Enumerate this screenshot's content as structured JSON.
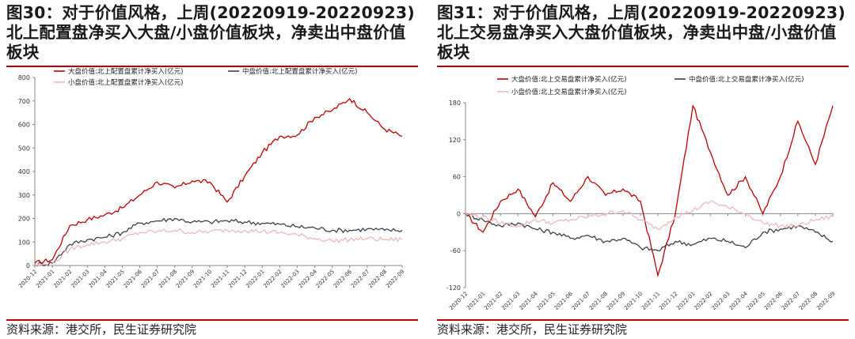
{
  "charts": [
    {
      "title": "图30：对于价值风格，上周(20220919-20220923)北上配置盘净买入大盘/小盘价值板块，净卖出中盘价值板块",
      "source": "资料来源：港交所，民生证券研究院"
    },
    {
      "title": "图31：对于价值风格，上周(20220919-20220923)北上交易盘净买入大盘价值板块，净卖出中盘/小盘价值板块",
      "source": "资料来源：港交所，民生证券研究院"
    }
  ],
  "chart_data": [
    {
      "type": "line",
      "grid": false,
      "legend_position": "top",
      "ylim": [
        0,
        800
      ],
      "yticks": [
        0,
        100,
        200,
        300,
        400,
        500,
        600,
        700,
        800
      ],
      "x": [
        "2020-12",
        "2021-01",
        "2021-02",
        "2021-03",
        "2021-04",
        "2021-05",
        "2021-06",
        "2021-07",
        "2021-08",
        "2021-09",
        "2021-10",
        "2021-11",
        "2021-12",
        "2022-01",
        "2022-02",
        "2022-03",
        "2022-04",
        "2022-05",
        "2022-06",
        "2022-07",
        "2022-08",
        "2022-09"
      ],
      "series": [
        {
          "name": "大盘价值:北上配置盘累计净买入(亿元)",
          "color": "#c00000",
          "values": [
            10,
            25,
            170,
            195,
            215,
            245,
            300,
            355,
            330,
            360,
            355,
            270,
            380,
            480,
            550,
            555,
            630,
            660,
            710,
            650,
            580,
            550
          ]
        },
        {
          "name": "中盘价值:北上配置盘累计净买入(亿元)",
          "color": "#404040",
          "values": [
            5,
            10,
            90,
            110,
            120,
            140,
            180,
            190,
            200,
            185,
            185,
            190,
            185,
            180,
            175,
            165,
            160,
            150,
            150,
            155,
            150,
            150
          ]
        },
        {
          "name": "小盘价值:北上配置盘累计净买入(亿元)",
          "color": "#f2b8b8",
          "values": [
            3,
            5,
            70,
            90,
            100,
            115,
            140,
            145,
            150,
            140,
            145,
            150,
            150,
            145,
            140,
            130,
            115,
            105,
            110,
            115,
            110,
            110
          ]
        }
      ]
    },
    {
      "type": "line",
      "grid": false,
      "legend_position": "top",
      "ylim": [
        -120,
        180
      ],
      "yticks": [
        -120,
        -60,
        0,
        60,
        120,
        180
      ],
      "x": [
        "2020-12",
        "2021-01",
        "2021-02",
        "2021-03",
        "2021-04",
        "2021-05",
        "2021-06",
        "2021-07",
        "2021-08",
        "2021-09",
        "2021-10",
        "2021-11",
        "2021-12",
        "2022-01",
        "2022-02",
        "2022-03",
        "2022-04",
        "2022-05",
        "2022-06",
        "2022-07",
        "2022-08",
        "2022-09"
      ],
      "series": [
        {
          "name": "大盘价值:北上交易盘累计净买入(亿元)",
          "color": "#c00000",
          "values": [
            0,
            -30,
            20,
            40,
            -5,
            50,
            20,
            60,
            30,
            40,
            20,
            -100,
            0,
            175,
            100,
            30,
            60,
            0,
            60,
            150,
            80,
            175
          ]
        },
        {
          "name": "中盘价值:北上交易盘累计净买入(亿元)",
          "color": "#404040",
          "values": [
            0,
            -10,
            -20,
            -15,
            -25,
            -30,
            -40,
            -35,
            -45,
            -40,
            -55,
            -60,
            -45,
            -50,
            -40,
            -45,
            -55,
            -30,
            -25,
            -20,
            -30,
            -45
          ]
        },
        {
          "name": "小盘价值:北上交易盘累计净买入(亿元)",
          "color": "#f2b8b8",
          "values": [
            0,
            -5,
            -15,
            -20,
            -10,
            -15,
            -10,
            -5,
            0,
            5,
            -10,
            -25,
            -5,
            5,
            20,
            10,
            0,
            -15,
            -20,
            -20,
            -10,
            -5
          ]
        }
      ]
    }
  ]
}
